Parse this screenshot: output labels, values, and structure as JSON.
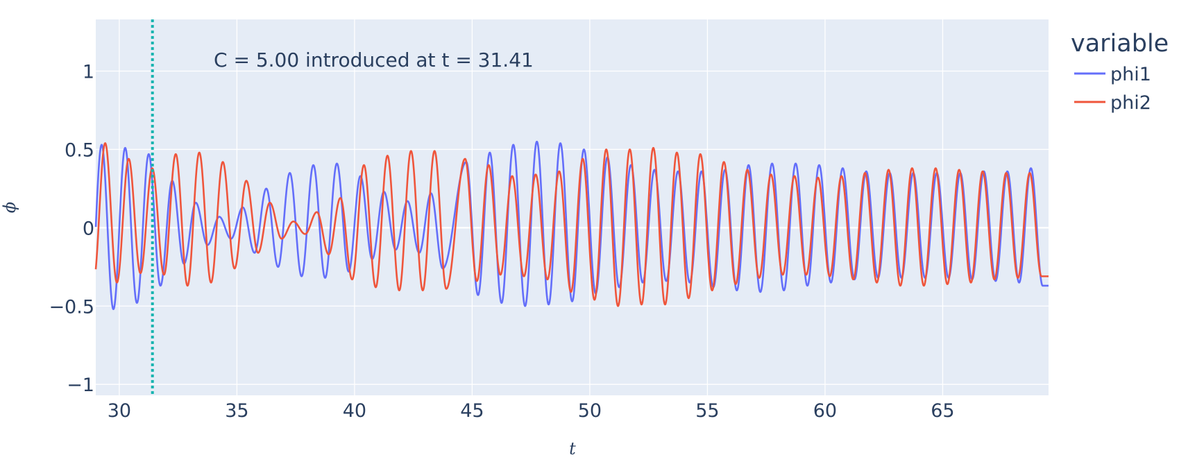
{
  "chart_data": {
    "type": "line",
    "title": "",
    "xlabel": "t",
    "ylabel": "ϕ",
    "xlim": [
      29.0,
      69.5
    ],
    "ylim": [
      -1.07,
      1.33
    ],
    "x_ticks": [
      30,
      35,
      40,
      45,
      50,
      55,
      60,
      65
    ],
    "x_tick_labels": [
      "30",
      "35",
      "40",
      "45",
      "50",
      "55",
      "60",
      "65"
    ],
    "y_ticks": [
      -1,
      -0.5,
      0,
      0.5,
      1
    ],
    "y_tick_labels": [
      "−1",
      "−0.5",
      "0",
      "0.5",
      "1"
    ],
    "grid": true,
    "plot_bgcolor": "#e5ecf6",
    "legend": {
      "title": "variable",
      "position": "top-right outside"
    },
    "annotation": {
      "text": "C = 5.00 introduced at t = 31.41",
      "vline_x": 31.41,
      "vline_color": "#17b4b0",
      "vline_style": "dotted"
    },
    "series": [
      {
        "name": "phi1",
        "color": "#636efa",
        "period": 1.0,
        "peak_times": [
          29.25,
          30.25,
          31.25,
          32.25,
          33.25,
          34.25,
          35.25,
          36.25,
          37.25,
          38.25,
          39.25,
          40.25,
          41.25,
          42.25,
          43.25,
          44.75,
          45.75,
          46.75,
          47.75,
          48.75,
          49.75,
          50.75,
          51.75,
          52.75,
          53.75,
          54.75,
          55.75,
          56.75,
          57.75,
          58.75,
          59.75,
          60.75,
          61.75,
          62.75,
          63.75,
          64.75,
          65.75,
          66.75,
          67.75,
          68.75
        ],
        "peaks": [
          0.53,
          0.51,
          0.47,
          0.3,
          0.16,
          0.07,
          0.13,
          0.25,
          0.35,
          0.4,
          0.41,
          0.33,
          0.23,
          0.17,
          0.22,
          0.42,
          0.48,
          0.53,
          0.55,
          0.54,
          0.5,
          0.45,
          0.4,
          0.37,
          0.36,
          0.36,
          0.37,
          0.4,
          0.41,
          0.41,
          0.4,
          0.38,
          0.36,
          0.35,
          0.35,
          0.35,
          0.35,
          0.36,
          0.36,
          0.38
        ],
        "troughs": [
          -0.52,
          -0.48,
          -0.37,
          -0.23,
          -0.11,
          -0.07,
          -0.16,
          -0.25,
          -0.31,
          -0.32,
          -0.28,
          -0.2,
          -0.14,
          -0.16,
          -0.26,
          -0.43,
          -0.48,
          -0.5,
          -0.49,
          -0.47,
          -0.42,
          -0.38,
          -0.35,
          -0.34,
          -0.35,
          -0.38,
          -0.4,
          -0.41,
          -0.4,
          -0.37,
          -0.35,
          -0.33,
          -0.32,
          -0.32,
          -0.32,
          -0.32,
          -0.33,
          -0.34,
          -0.35,
          -0.37
        ]
      },
      {
        "name": "phi2",
        "color": "#ef553b",
        "period": 1.0,
        "peak_times": [
          29.4,
          30.4,
          31.4,
          32.4,
          33.4,
          34.4,
          35.4,
          36.4,
          37.4,
          38.4,
          39.4,
          40.4,
          41.4,
          42.4,
          43.4,
          44.7,
          45.7,
          46.7,
          47.7,
          48.7,
          49.7,
          50.7,
          51.7,
          52.7,
          53.7,
          54.7,
          55.7,
          56.7,
          57.7,
          58.7,
          59.7,
          60.7,
          61.7,
          62.7,
          63.7,
          64.7,
          65.7,
          66.7,
          67.7,
          68.7
        ],
        "peaks": [
          0.54,
          0.44,
          0.38,
          0.47,
          0.48,
          0.42,
          0.3,
          0.16,
          0.04,
          0.1,
          0.19,
          0.4,
          0.46,
          0.49,
          0.49,
          0.44,
          0.4,
          0.33,
          0.34,
          0.36,
          0.44,
          0.5,
          0.5,
          0.51,
          0.48,
          0.47,
          0.42,
          0.37,
          0.34,
          0.33,
          0.32,
          0.33,
          0.35,
          0.37,
          0.38,
          0.38,
          0.37,
          0.36,
          0.35,
          0.35
        ],
        "troughs": [
          -0.35,
          -0.29,
          -0.3,
          -0.37,
          -0.35,
          -0.26,
          -0.16,
          -0.07,
          -0.04,
          -0.17,
          -0.33,
          -0.38,
          -0.4,
          -0.4,
          -0.39,
          -0.34,
          -0.3,
          -0.31,
          -0.33,
          -0.41,
          -0.46,
          -0.5,
          -0.49,
          -0.49,
          -0.45,
          -0.4,
          -0.36,
          -0.32,
          -0.3,
          -0.3,
          -0.31,
          -0.33,
          -0.35,
          -0.37,
          -0.37,
          -0.36,
          -0.35,
          -0.33,
          -0.32,
          -0.31
        ]
      }
    ]
  }
}
